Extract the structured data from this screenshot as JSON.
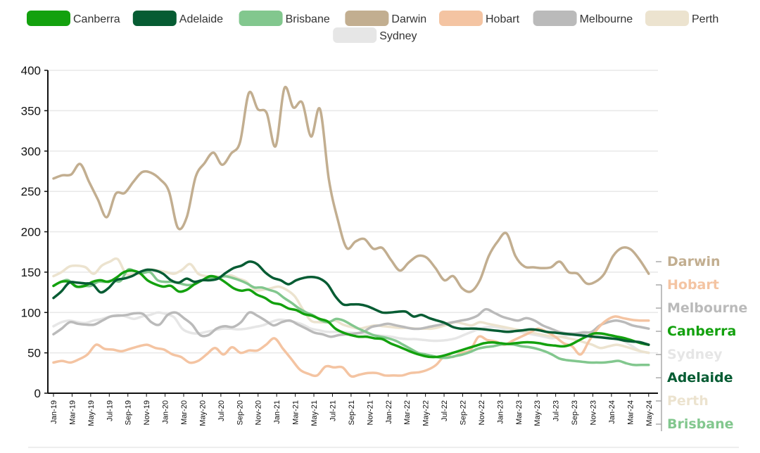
{
  "chart_data": {
    "type": "line",
    "title": "",
    "xlabel": "",
    "ylabel": "",
    "ylim": [
      0,
      400
    ],
    "yticks": [
      0,
      50,
      100,
      150,
      200,
      250,
      300,
      350,
      400
    ],
    "grid": "horizontal",
    "legend_position": "top",
    "start_month": "Jan-19",
    "x_tick_labels": [
      "Jan-19",
      "Mar-19",
      "May-19",
      "Jul-19",
      "Sep-19",
      "Nov-19",
      "Jan-20",
      "Mar-20",
      "May-20",
      "Jul-20",
      "Sep-20",
      "Nov-20",
      "Jan-21",
      "Mar-21",
      "May-21",
      "Jul-21",
      "Sep-21",
      "Nov-21",
      "Jan-22",
      "Mar-22",
      "May-22",
      "Jul-22",
      "Sep-22",
      "Nov-22",
      "Jan-23",
      "Mar-23",
      "May-23",
      "Jul-23",
      "Sep-23",
      "Nov-23",
      "Jan-24",
      "Mar-24",
      "May-24"
    ],
    "series": [
      {
        "name": "Canberra",
        "color": "#13a10e",
        "values": [
          133,
          138,
          138,
          132,
          133,
          138,
          140,
          138,
          143,
          150,
          152,
          149,
          140,
          135,
          132,
          133,
          126,
          128,
          135,
          140,
          145,
          143,
          137,
          130,
          127,
          128,
          122,
          118,
          112,
          110,
          105,
          103,
          98,
          96,
          92,
          89,
          80,
          75,
          72,
          70,
          70,
          68,
          67,
          62,
          58,
          54,
          50,
          47,
          45,
          45,
          47,
          50,
          53,
          56,
          59,
          62,
          63,
          62,
          61,
          62,
          63,
          63,
          62,
          60,
          59,
          58,
          60,
          65,
          70,
          74,
          74,
          72,
          70,
          68,
          65,
          62,
          60
        ]
      },
      {
        "name": "Adelaide",
        "color": "#065c33",
        "values": [
          118,
          126,
          137,
          137,
          136,
          135,
          125,
          130,
          140,
          142,
          145,
          150,
          153,
          152,
          148,
          140,
          137,
          142,
          138,
          140,
          140,
          142,
          149,
          155,
          158,
          163,
          160,
          150,
          143,
          140,
          135,
          140,
          143,
          144,
          142,
          135,
          120,
          110,
          110,
          110,
          108,
          104,
          100,
          100,
          101,
          101,
          95,
          97,
          93,
          90,
          87,
          82,
          80,
          80,
          80,
          79,
          78,
          77,
          76,
          77,
          78,
          79,
          78,
          76,
          75,
          74,
          73,
          72,
          71,
          70,
          69,
          68,
          67,
          65,
          64,
          63,
          60
        ]
      },
      {
        "name": "Brisbane",
        "color": "#82c78e",
        "values": [
          133,
          138,
          140,
          132,
          133,
          133,
          138,
          138,
          140,
          139,
          153,
          151,
          149,
          150,
          140,
          138,
          138,
          136,
          134,
          135,
          140,
          142,
          143,
          145,
          143,
          140,
          136,
          131,
          131,
          128,
          125,
          118,
          112,
          105,
          100,
          96,
          90,
          88,
          92,
          90,
          85,
          80,
          76,
          72,
          70,
          68,
          65,
          60,
          55,
          50,
          48,
          46,
          44,
          44,
          46,
          48,
          51,
          55,
          57,
          58,
          60,
          61,
          60,
          58,
          57,
          55,
          52,
          48,
          43,
          41,
          40,
          39,
          38,
          38,
          38,
          39,
          40,
          37,
          35,
          35,
          35
        ]
      },
      {
        "name": "Darwin",
        "color": "#c2ae90",
        "values": [
          266,
          270,
          271,
          284,
          262,
          240,
          218,
          247,
          248,
          262,
          274,
          273,
          265,
          250,
          205,
          218,
          268,
          285,
          298,
          283,
          297,
          311,
          372,
          352,
          347,
          306,
          378,
          354,
          360,
          318,
          352,
          265,
          215,
          180,
          188,
          191,
          179,
          180,
          165,
          152,
          162,
          170,
          168,
          155,
          140,
          145,
          130,
          126,
          140,
          170,
          188,
          198,
          170,
          157,
          156,
          155,
          156,
          163,
          150,
          148,
          136,
          138,
          148,
          170,
          180,
          178,
          165,
          148
        ]
      },
      {
        "name": "Hobart",
        "color": "#f4c4a2",
        "values": [
          38,
          40,
          38,
          42,
          48,
          60,
          55,
          54,
          52,
          55,
          58,
          60,
          56,
          54,
          48,
          45,
          38,
          40,
          48,
          56,
          48,
          57,
          50,
          53,
          53,
          60,
          68,
          55,
          42,
          29,
          24,
          22,
          33,
          32,
          32,
          21,
          23,
          25,
          25,
          22,
          22,
          22,
          25,
          26,
          29,
          35,
          46,
          45,
          50,
          53,
          70,
          66,
          64,
          60,
          65,
          70,
          75,
          80,
          76,
          70,
          62,
          58,
          48,
          65,
          80,
          90,
          95,
          93,
          91,
          90,
          90
        ]
      },
      {
        "name": "Melbourne",
        "color": "#bababa",
        "values": [
          73,
          80,
          88,
          86,
          85,
          85,
          90,
          95,
          96,
          97,
          99,
          98,
          88,
          85,
          97,
          100,
          93,
          85,
          72,
          72,
          80,
          83,
          82,
          88,
          100,
          96,
          90,
          84,
          88,
          90,
          85,
          80,
          75,
          73,
          70,
          72,
          73,
          74,
          76,
          82,
          84,
          86,
          84,
          82,
          80,
          80,
          82,
          84,
          86,
          88,
          90,
          92,
          96,
          104,
          100,
          95,
          92,
          90,
          93,
          90,
          84,
          80,
          76,
          74,
          74,
          75,
          76,
          84,
          88,
          90,
          88,
          84,
          82,
          80
        ]
      },
      {
        "name": "Perth",
        "color": "#ece3cf",
        "values": [
          145,
          150,
          157,
          158,
          156,
          148,
          158,
          163,
          166,
          148,
          148,
          148,
          153,
          152,
          150,
          148,
          153,
          160,
          148,
          145,
          145,
          144,
          146,
          142,
          138,
          128,
          128,
          130,
          132,
          128,
          120,
          104,
          90,
          88,
          88,
          90,
          85,
          82,
          80,
          82,
          84,
          83,
          82,
          81,
          81,
          80,
          80,
          80,
          82,
          85,
          88,
          86,
          84,
          88,
          86,
          84,
          82,
          80,
          78,
          76,
          74,
          72,
          70,
          70,
          68,
          66,
          63,
          60,
          56,
          58,
          60,
          58,
          55,
          52,
          50
        ]
      },
      {
        "name": "Sydney",
        "color": "#e6e6e6",
        "values": [
          83,
          88,
          90,
          88,
          87,
          90,
          92,
          95,
          97,
          95,
          92,
          95,
          97,
          100,
          98,
          94,
          80,
          75,
          74,
          76,
          78,
          80,
          80,
          79,
          80,
          82,
          84,
          88,
          91,
          90,
          88,
          85,
          80,
          78,
          76,
          76,
          76,
          75,
          74,
          73,
          72,
          71,
          70,
          68,
          67,
          67,
          66,
          65,
          65,
          66,
          68,
          72,
          76,
          80,
          82,
          82,
          80,
          78,
          76,
          74,
          72,
          70,
          68,
          70,
          72,
          74,
          76,
          74,
          72,
          70,
          68,
          64,
          58,
          52,
          50
        ]
      }
    ],
    "end_labels": [
      {
        "name": "Darwin",
        "color": "#c2ae90"
      },
      {
        "name": "Hobart",
        "color": "#f4c4a2"
      },
      {
        "name": "Melbourne",
        "color": "#bababa"
      },
      {
        "name": "Canberra",
        "color": "#13a10e"
      },
      {
        "name": "Sydney",
        "color": "#e6e6e6"
      },
      {
        "name": "Adelaide",
        "color": "#065c33"
      },
      {
        "name": "Perth",
        "color": "#ece3cf"
      },
      {
        "name": "Brisbane",
        "color": "#82c78e"
      }
    ]
  }
}
